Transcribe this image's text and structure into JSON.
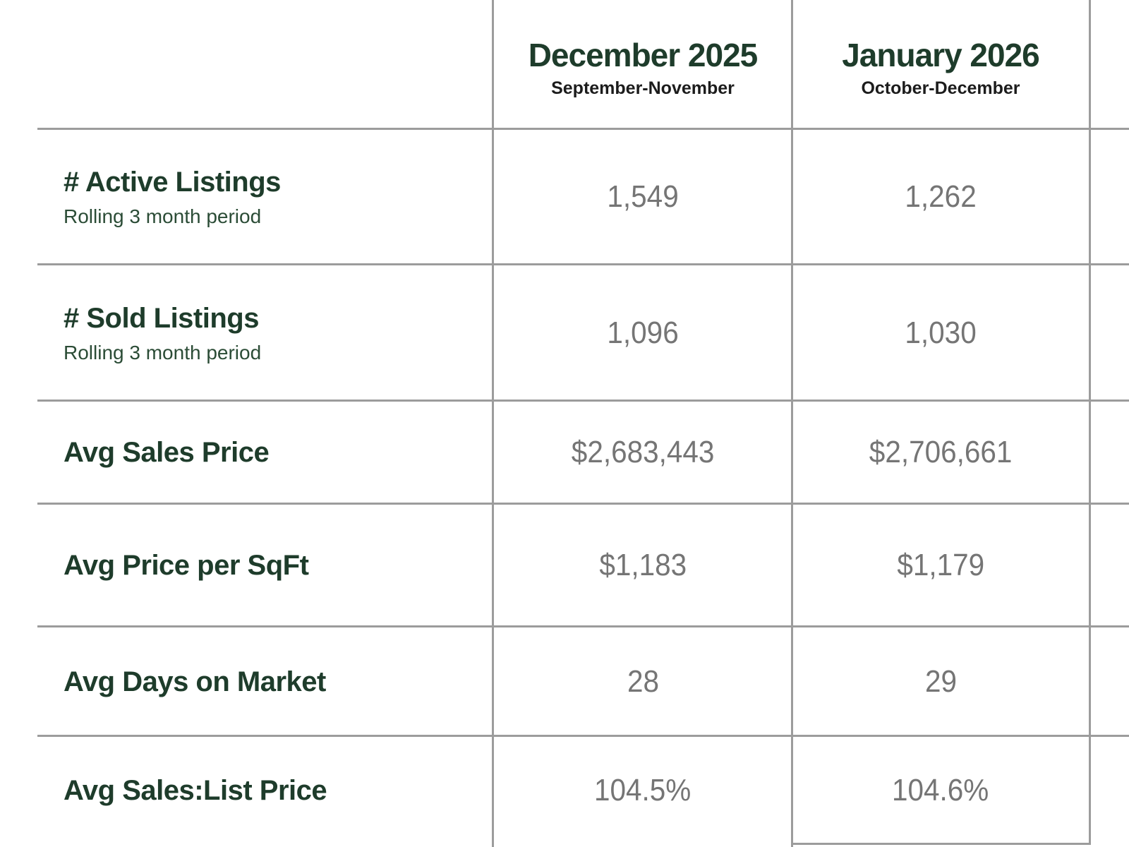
{
  "table": {
    "columns": [
      {
        "title": "December 2025",
        "subtitle": "September-November"
      },
      {
        "title": "January 2026",
        "subtitle": "October-December"
      }
    ],
    "rows": [
      {
        "label": "# Active Listings",
        "sublabel": "Rolling 3 month period",
        "values": [
          "1,549",
          "1,262"
        ]
      },
      {
        "label": "# Sold Listings",
        "sublabel": "Rolling 3 month period",
        "values": [
          "1,096",
          "1,030"
        ]
      },
      {
        "label": "Avg Sales Price",
        "values": [
          "$2,683,443",
          "$2,706,661"
        ]
      },
      {
        "label": "Avg Price per SqFt",
        "values": [
          "$1,183",
          "$1,179"
        ]
      },
      {
        "label": "Avg Days on Market",
        "values": [
          "28",
          "29"
        ]
      },
      {
        "label": "Avg Sales:List Price",
        "values": [
          "104.5%",
          "104.6%"
        ]
      }
    ],
    "colors": {
      "heading_green": "#1e3c2b",
      "sublabel_green": "#2b4c36",
      "value_gray": "#757575",
      "line_gray": "#9c9c9c",
      "subtitle_black": "#1c1c1c"
    }
  }
}
